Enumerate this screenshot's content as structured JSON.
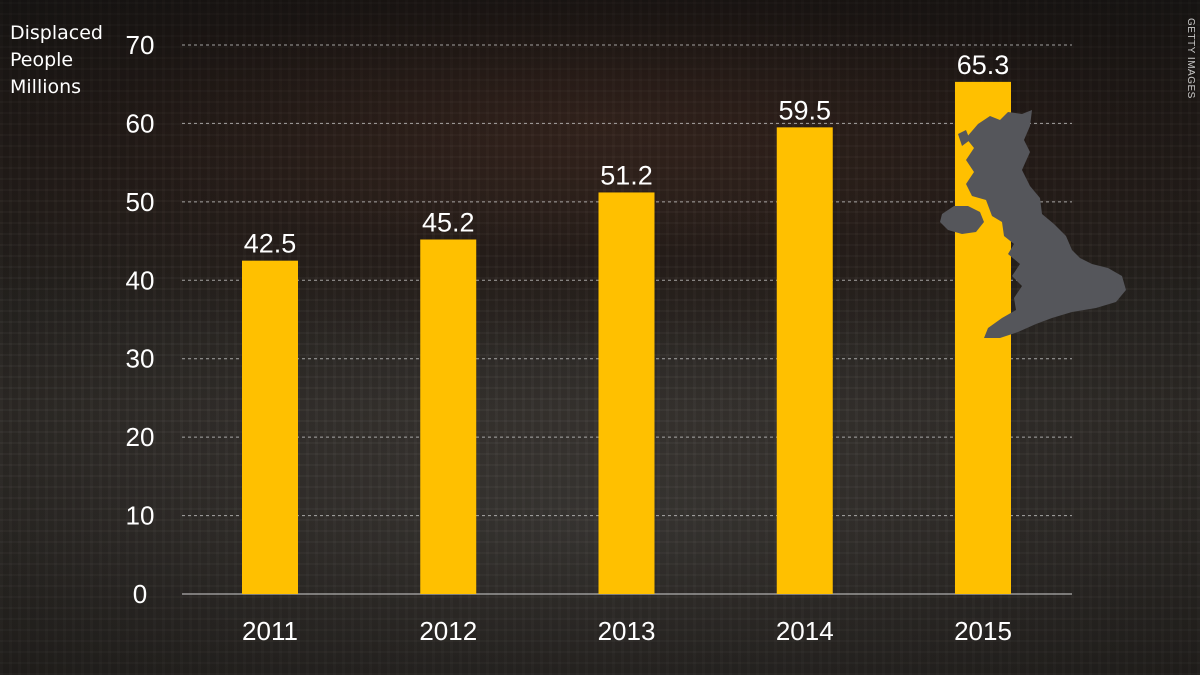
{
  "photo_credit": "GETTY IMAGES",
  "axis_label_lines": [
    "Displaced",
    "People",
    "Millions"
  ],
  "colors": {
    "bar": "#FFC000",
    "text": "#FFFFFF",
    "grid": "#D0D0D0",
    "map_icon": "#55565B"
  },
  "icon": "uk-map-silhouette-icon",
  "chart_data": {
    "type": "bar",
    "title": "",
    "xlabel": "",
    "ylabel": "Displaced People Millions",
    "categories": [
      "2011",
      "2012",
      "2013",
      "2014",
      "2015"
    ],
    "values": [
      42.5,
      45.2,
      51.2,
      59.5,
      65.3
    ],
    "value_labels": [
      "42.5",
      "45.2",
      "51.2",
      "59.5",
      "65.3"
    ],
    "ylim": [
      0,
      70
    ],
    "yticks": [
      0,
      10,
      20,
      30,
      40,
      50,
      60,
      70
    ],
    "grid": "horizontal dashed",
    "legend": "none"
  }
}
